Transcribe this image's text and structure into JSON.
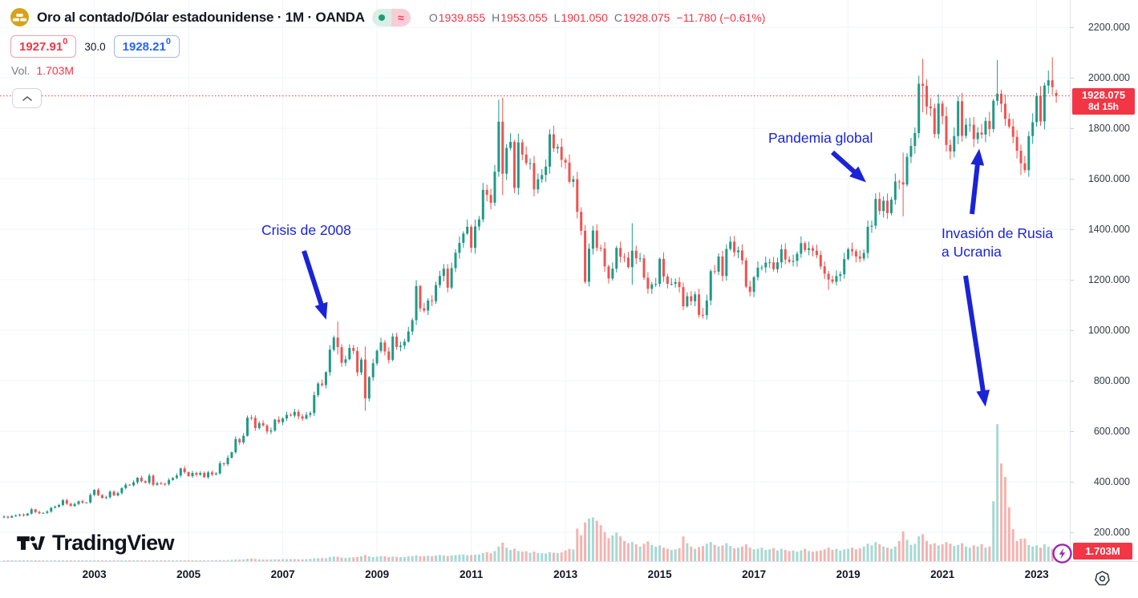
{
  "header": {
    "title": "Oro al contado/Dólar estadounidense · 1M · OANDA",
    "symbol_icon": "gold-bars-coin",
    "status": {
      "market_dot_color": "#1d9d74",
      "approx_symbol": "≈"
    },
    "ohlc": {
      "items": [
        {
          "label": "O",
          "value": "1939.855"
        },
        {
          "label": "H",
          "value": "1953.055"
        },
        {
          "label": "L",
          "value": "1901.050"
        },
        {
          "label": "C",
          "value": "1928.075"
        }
      ],
      "change": "−11.780 (−0.61%)"
    },
    "quote": {
      "sell": "1927.91",
      "sell_sup": "0",
      "spread": "30.0",
      "buy": "1928.21",
      "buy_sup": "0"
    },
    "volume_row": {
      "label": "Vol.",
      "value": "1.703M"
    }
  },
  "price_scale": {
    "ticks": [
      "2200.000",
      "2000.000",
      "1800.000",
      "1600.000",
      "1400.000",
      "1200.000",
      "1000.000",
      "800.000",
      "600.000",
      "400.000",
      "200.000"
    ],
    "last_price_tag": {
      "price": "1928.075",
      "countdown": "8d 15h"
    },
    "volume_tag": {
      "value": "1.703M"
    }
  },
  "time_scale": {
    "years": [
      "2003",
      "2005",
      "2007",
      "2009",
      "2011",
      "2013",
      "2015",
      "2017",
      "2019",
      "2021",
      "2023"
    ]
  },
  "footer": {
    "logo_text": "TradingView"
  },
  "colors": {
    "up": "#209988",
    "down": "#ef5350",
    "vol_up": "#a7d9d3",
    "vol_down": "#f5b3b0",
    "annotation_blue": "#1b23d6",
    "accent_red": "#f23645",
    "accent_blue": "#2962ff",
    "grid": "#f0f3fa",
    "axis_text": "#363a45",
    "muted": "#787b86",
    "purple": "#9c27b0"
  },
  "chart_data": {
    "type": "candlestick",
    "title": "Oro al contado/Dólar estadounidense",
    "interval": "1M",
    "exchange": "OANDA",
    "start_month": "2001-02",
    "end_month": "2023-06",
    "price_axis_ticks": [
      200,
      400,
      600,
      800,
      1000,
      1200,
      1400,
      1600,
      1800,
      2000,
      2200
    ],
    "time_axis_ticks": [
      2003,
      2005,
      2007,
      2009,
      2011,
      2013,
      2015,
      2017,
      2019,
      2021,
      2023
    ],
    "grid": true,
    "monthly_closes": [
      262,
      258,
      264,
      267,
      270,
      266,
      274,
      291,
      280,
      275,
      277,
      282,
      297,
      301,
      308,
      327,
      313,
      304,
      312,
      323,
      317,
      318,
      348,
      368,
      347,
      336,
      339,
      361,
      346,
      355,
      375,
      388,
      386,
      398,
      416,
      402,
      396,
      424,
      388,
      394,
      392,
      391,
      407,
      415,
      425,
      453,
      438,
      422,
      435,
      428,
      435,
      418,
      437,
      429,
      433,
      473,
      470,
      495,
      517,
      569,
      556,
      582,
      654,
      653,
      613,
      632,
      623,
      599,
      603,
      646,
      636,
      651,
      665,
      662,
      677,
      659,
      650,
      665,
      672,
      743,
      789,
      783,
      834,
      923,
      971,
      933,
      871,
      885,
      930,
      918,
      833,
      884,
      730,
      814,
      869,
      919,
      952,
      916,
      883,
      975,
      934,
      939,
      955,
      995,
      1040,
      1175,
      1087,
      1078,
      1118,
      1115,
      1179,
      1215,
      1244,
      1169,
      1246,
      1307,
      1346,
      1383,
      1410,
      1327,
      1411,
      1439,
      1556,
      1536,
      1505,
      1628,
      1826,
      1620,
      1722,
      1746,
      1564,
      1744,
      1696,
      1662,
      1662,
      1558,
      1598,
      1615,
      1648,
      1776,
      1720,
      1726,
      1675,
      1664,
      1588,
      1598,
      1469,
      1394,
      1192,
      1323,
      1395,
      1326,
      1324,
      1253,
      1205,
      1244,
      1326,
      1291,
      1288,
      1250,
      1315,
      1285,
      1285,
      1208,
      1164,
      1182,
      1184,
      1283,
      1213,
      1184,
      1184,
      1191,
      1171,
      1095,
      1135,
      1115,
      1142,
      1061,
      1060,
      1118,
      1234,
      1232,
      1292,
      1215,
      1322,
      1351,
      1309,
      1316,
      1277,
      1173,
      1152,
      1210,
      1248,
      1249,
      1268,
      1269,
      1242,
      1269,
      1321,
      1280,
      1271,
      1275,
      1303,
      1345,
      1318,
      1325,
      1315,
      1298,
      1253,
      1224,
      1201,
      1192,
      1215,
      1222,
      1282,
      1321,
      1313,
      1292,
      1284,
      1306,
      1410,
      1414,
      1520,
      1472,
      1513,
      1464,
      1517,
      1589,
      1586,
      1577,
      1687,
      1730,
      1781,
      1976,
      1968,
      1886,
      1879,
      1777,
      1898,
      1848,
      1734,
      1708,
      1769,
      1907,
      1770,
      1814,
      1814,
      1757,
      1783,
      1775,
      1829,
      1797,
      1909,
      1937,
      1897,
      1837,
      1807,
      1766,
      1711,
      1661,
      1634,
      1769,
      1824,
      1928,
      1827,
      1969,
      1990,
      1963,
      1928.075
    ],
    "monthly_volumes_millions": [
      0.04,
      0.05,
      0.04,
      0.05,
      0.06,
      0.05,
      0.04,
      0.06,
      0.07,
      0.05,
      0.05,
      0.06,
      0.07,
      0.08,
      0.07,
      0.09,
      0.08,
      0.07,
      0.08,
      0.09,
      0.08,
      0.08,
      0.1,
      0.1,
      0.09,
      0.1,
      0.09,
      0.11,
      0.1,
      0.1,
      0.12,
      0.13,
      0.11,
      0.12,
      0.14,
      0.13,
      0.12,
      0.15,
      0.13,
      0.12,
      0.12,
      0.11,
      0.13,
      0.14,
      0.15,
      0.17,
      0.15,
      0.14,
      0.15,
      0.14,
      0.15,
      0.14,
      0.16,
      0.15,
      0.16,
      0.19,
      0.18,
      0.21,
      0.24,
      0.3,
      0.27,
      0.31,
      0.42,
      0.45,
      0.38,
      0.33,
      0.31,
      0.3,
      0.29,
      0.33,
      0.31,
      0.34,
      0.35,
      0.36,
      0.35,
      0.33,
      0.32,
      0.36,
      0.4,
      0.48,
      0.52,
      0.55,
      0.52,
      0.72,
      0.8,
      0.78,
      0.62,
      0.58,
      0.65,
      0.68,
      0.72,
      0.88,
      1.1,
      0.85,
      0.72,
      0.8,
      0.9,
      0.85,
      0.72,
      0.82,
      0.75,
      0.7,
      0.72,
      0.85,
      0.9,
      1.05,
      0.88,
      0.9,
      0.95,
      0.88,
      0.98,
      1.1,
      1.02,
      0.92,
      1.0,
      1.08,
      1.15,
      1.2,
      1.05,
      1.1,
      1.15,
      1.2,
      1.45,
      1.6,
      1.4,
      1.8,
      2.6,
      3.3,
      2.4,
      2.0,
      2.2,
      1.8,
      1.7,
      1.75,
      1.5,
      1.7,
      1.45,
      1.4,
      1.35,
      1.6,
      1.5,
      1.45,
      1.55,
      1.9,
      2.2,
      2.1,
      5.8,
      4.6,
      6.9,
      7.6,
      7.8,
      7.2,
      6.4,
      5.2,
      4.1,
      4.6,
      5.1,
      4.4,
      3.6,
      3.2,
      3.4,
      3.0,
      2.6,
      3.1,
      3.5,
      2.9,
      2.6,
      2.8,
      2.4,
      2.2,
      2.0,
      2.1,
      2.3,
      4.4,
      3.2,
      2.6,
      2.2,
      2.5,
      2.7,
      3.1,
      3.4,
      2.9,
      2.6,
      2.8,
      3.2,
      2.7,
      2.3,
      2.4,
      2.6,
      3.0,
      2.4,
      2.1,
      2.2,
      2.4,
      2.0,
      2.1,
      2.3,
      1.9,
      2.2,
      2.0,
      1.8,
      1.9,
      1.7,
      1.9,
      2.2,
      1.8,
      1.7,
      1.8,
      1.9,
      2.1,
      2.4,
      2.0,
      2.2,
      1.9,
      2.1,
      2.2,
      2.4,
      2.1,
      2.3,
      2.6,
      3.1,
      2.8,
      3.4,
      3.0,
      2.6,
      2.4,
      2.2,
      2.6,
      3.6,
      5.3,
      3.8,
      2.9,
      3.1,
      4.4,
      4.8,
      3.6,
      3.0,
      3.2,
      2.8,
      3.0,
      3.4,
      3.1,
      2.7,
      2.9,
      3.2,
      2.6,
      2.4,
      2.8,
      2.6,
      3.0,
      2.4,
      2.6,
      10.7,
      24.4,
      17.4,
      15.0,
      9.6,
      5.7,
      3.6,
      4.0,
      4.0,
      2.9,
      2.6,
      2.8,
      2.4,
      3.0,
      2.6,
      2.2,
      1.703
    ],
    "wick_overrides": {
      "85": [
        1034,
        904
      ],
      "92": [
        936,
        681
      ],
      "126": [
        1913,
        1608
      ],
      "127": [
        1921,
        1535
      ],
      "160": [
        1424,
        1180
      ],
      "178": [
        1088,
        1046
      ],
      "210": [
        1235,
        1160
      ],
      "229": [
        1704,
        1451
      ],
      "234": [
        2075,
        1863
      ],
      "241": [
        1755,
        1677
      ],
      "253": [
        2070,
        1890
      ],
      "259": [
        1735,
        1615
      ],
      "267": [
        2081,
        1932
      ],
      "268": [
        1953.055,
        1901.05
      ]
    },
    "last_candle": {
      "open": 1939.855,
      "high": 1953.055,
      "low": 1901.05,
      "close": 1928.075,
      "volume": "1.703M"
    },
    "annotations": [
      {
        "id": "crisis-2008",
        "text": "Crisis de 2008",
        "text2": "",
        "text_x": 326,
        "text_y": 276,
        "arrows": [
          [
            379,
            313,
            401,
            381
          ]
        ]
      },
      {
        "id": "pandemia-global",
        "text": "Pandemia global",
        "text2": "",
        "text_x": 958,
        "text_y": 161,
        "arrows": [
          [
            1038,
            190,
            1066,
            215
          ]
        ]
      },
      {
        "id": "invasion-rusia-ucrania",
        "text": "Invasión de Rusia",
        "text2": "a Ucrania",
        "text_x": 1174,
        "text_y": 280,
        "arrows": [
          [
            1212,
            267,
            1219,
            204
          ],
          [
            1204,
            344,
            1226,
            489
          ]
        ]
      }
    ]
  }
}
